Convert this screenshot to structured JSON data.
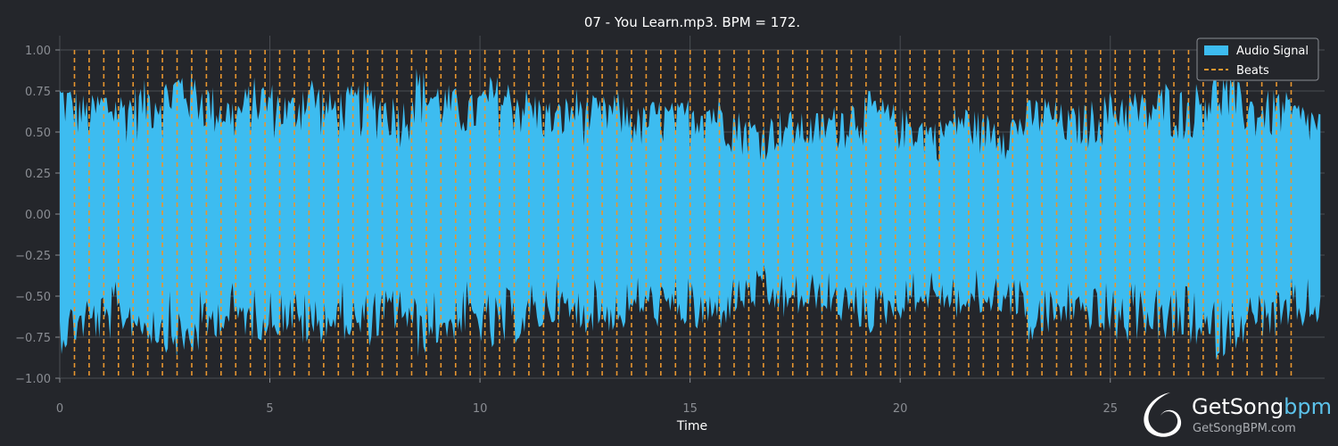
{
  "chart_data": {
    "type": "area",
    "title": "07 - You Learn.mp3. BPM = 172.",
    "xlabel": "Time",
    "ylabel": "",
    "xlim": [
      0,
      30.1
    ],
    "ylim": [
      -1.0,
      1.0
    ],
    "x_ticks": [
      0,
      5,
      10,
      15,
      20,
      25
    ],
    "y_ticks": [
      1.0,
      0.75,
      0.5,
      0.25,
      0.0,
      -0.25,
      -0.5,
      -0.75,
      -1.0
    ],
    "y_tick_labels": [
      "1.00",
      "0.75",
      "0.50",
      "0.25",
      "0.00",
      "−0.25",
      "−0.50",
      "−0.75",
      "−1.00"
    ],
    "grid": true,
    "legend_position": "top-right",
    "series": [
      {
        "name": "Audio Signal",
        "color": "#3dbcf0",
        "envelope_x": [
          0.0,
          0.3,
          0.7,
          1.0,
          1.5,
          2.0,
          2.5,
          2.9,
          3.3,
          3.7,
          4.2,
          4.6,
          5.0,
          5.5,
          5.9,
          6.4,
          6.9,
          7.3,
          7.8,
          8.2,
          8.5,
          8.9,
          9.4,
          9.8,
          10.3,
          10.8,
          11.3,
          11.8,
          12.3,
          12.8,
          13.3,
          13.8,
          14.2,
          14.7,
          15.2,
          15.7,
          16.2,
          16.7,
          17.2,
          17.8,
          18.3,
          18.8,
          19.3,
          19.8,
          20.3,
          20.9,
          21.4,
          21.9,
          22.4,
          22.9,
          23.1,
          23.5,
          24.0,
          24.5,
          25.0,
          25.4,
          25.9,
          26.3,
          26.8,
          27.2,
          27.6,
          28.0,
          28.5,
          29.0,
          29.5,
          30.0
        ],
        "envelope_upper": [
          0.8,
          0.75,
          0.68,
          0.75,
          0.72,
          0.78,
          0.8,
          0.88,
          0.82,
          0.74,
          0.68,
          0.8,
          0.78,
          0.7,
          0.85,
          0.72,
          0.75,
          0.78,
          0.72,
          0.68,
          0.88,
          0.8,
          0.74,
          0.7,
          0.82,
          0.78,
          0.72,
          0.65,
          0.74,
          0.68,
          0.72,
          0.62,
          0.68,
          0.65,
          0.72,
          0.7,
          0.6,
          0.55,
          0.62,
          0.58,
          0.62,
          0.68,
          0.72,
          0.65,
          0.6,
          0.55,
          0.66,
          0.6,
          0.58,
          0.62,
          0.68,
          0.7,
          0.62,
          0.66,
          0.72,
          0.75,
          0.7,
          0.78,
          0.72,
          0.8,
          0.86,
          0.78,
          0.7,
          0.74,
          0.66,
          0.62
        ],
        "envelope_lower": [
          -0.82,
          -0.78,
          -0.72,
          -0.76,
          -0.7,
          -0.75,
          -0.8,
          -0.88,
          -0.82,
          -0.72,
          -0.68,
          -0.75,
          -0.72,
          -0.7,
          -0.8,
          -0.72,
          -0.74,
          -0.78,
          -0.7,
          -0.66,
          -0.85,
          -0.78,
          -0.74,
          -0.7,
          -0.82,
          -0.76,
          -0.7,
          -0.64,
          -0.7,
          -0.68,
          -0.7,
          -0.6,
          -0.66,
          -0.64,
          -0.7,
          -0.68,
          -0.58,
          -0.55,
          -0.62,
          -0.58,
          -0.6,
          -0.66,
          -0.7,
          -0.64,
          -0.58,
          -0.55,
          -0.62,
          -0.6,
          -0.58,
          -0.62,
          -0.8,
          -0.72,
          -0.64,
          -0.68,
          -0.74,
          -0.76,
          -0.7,
          -0.78,
          -0.74,
          -0.82,
          -0.86,
          -0.78,
          -0.72,
          -0.74,
          -0.68,
          -0.64
        ]
      },
      {
        "name": "Beats",
        "color": "#e8962f",
        "bpm": 172,
        "first_beat": 0.35,
        "last_beat": 29.6
      }
    ]
  },
  "watermark": {
    "brand_main": "GetSong",
    "brand_accent": "bpm",
    "url": "GetSongBPM.com"
  }
}
